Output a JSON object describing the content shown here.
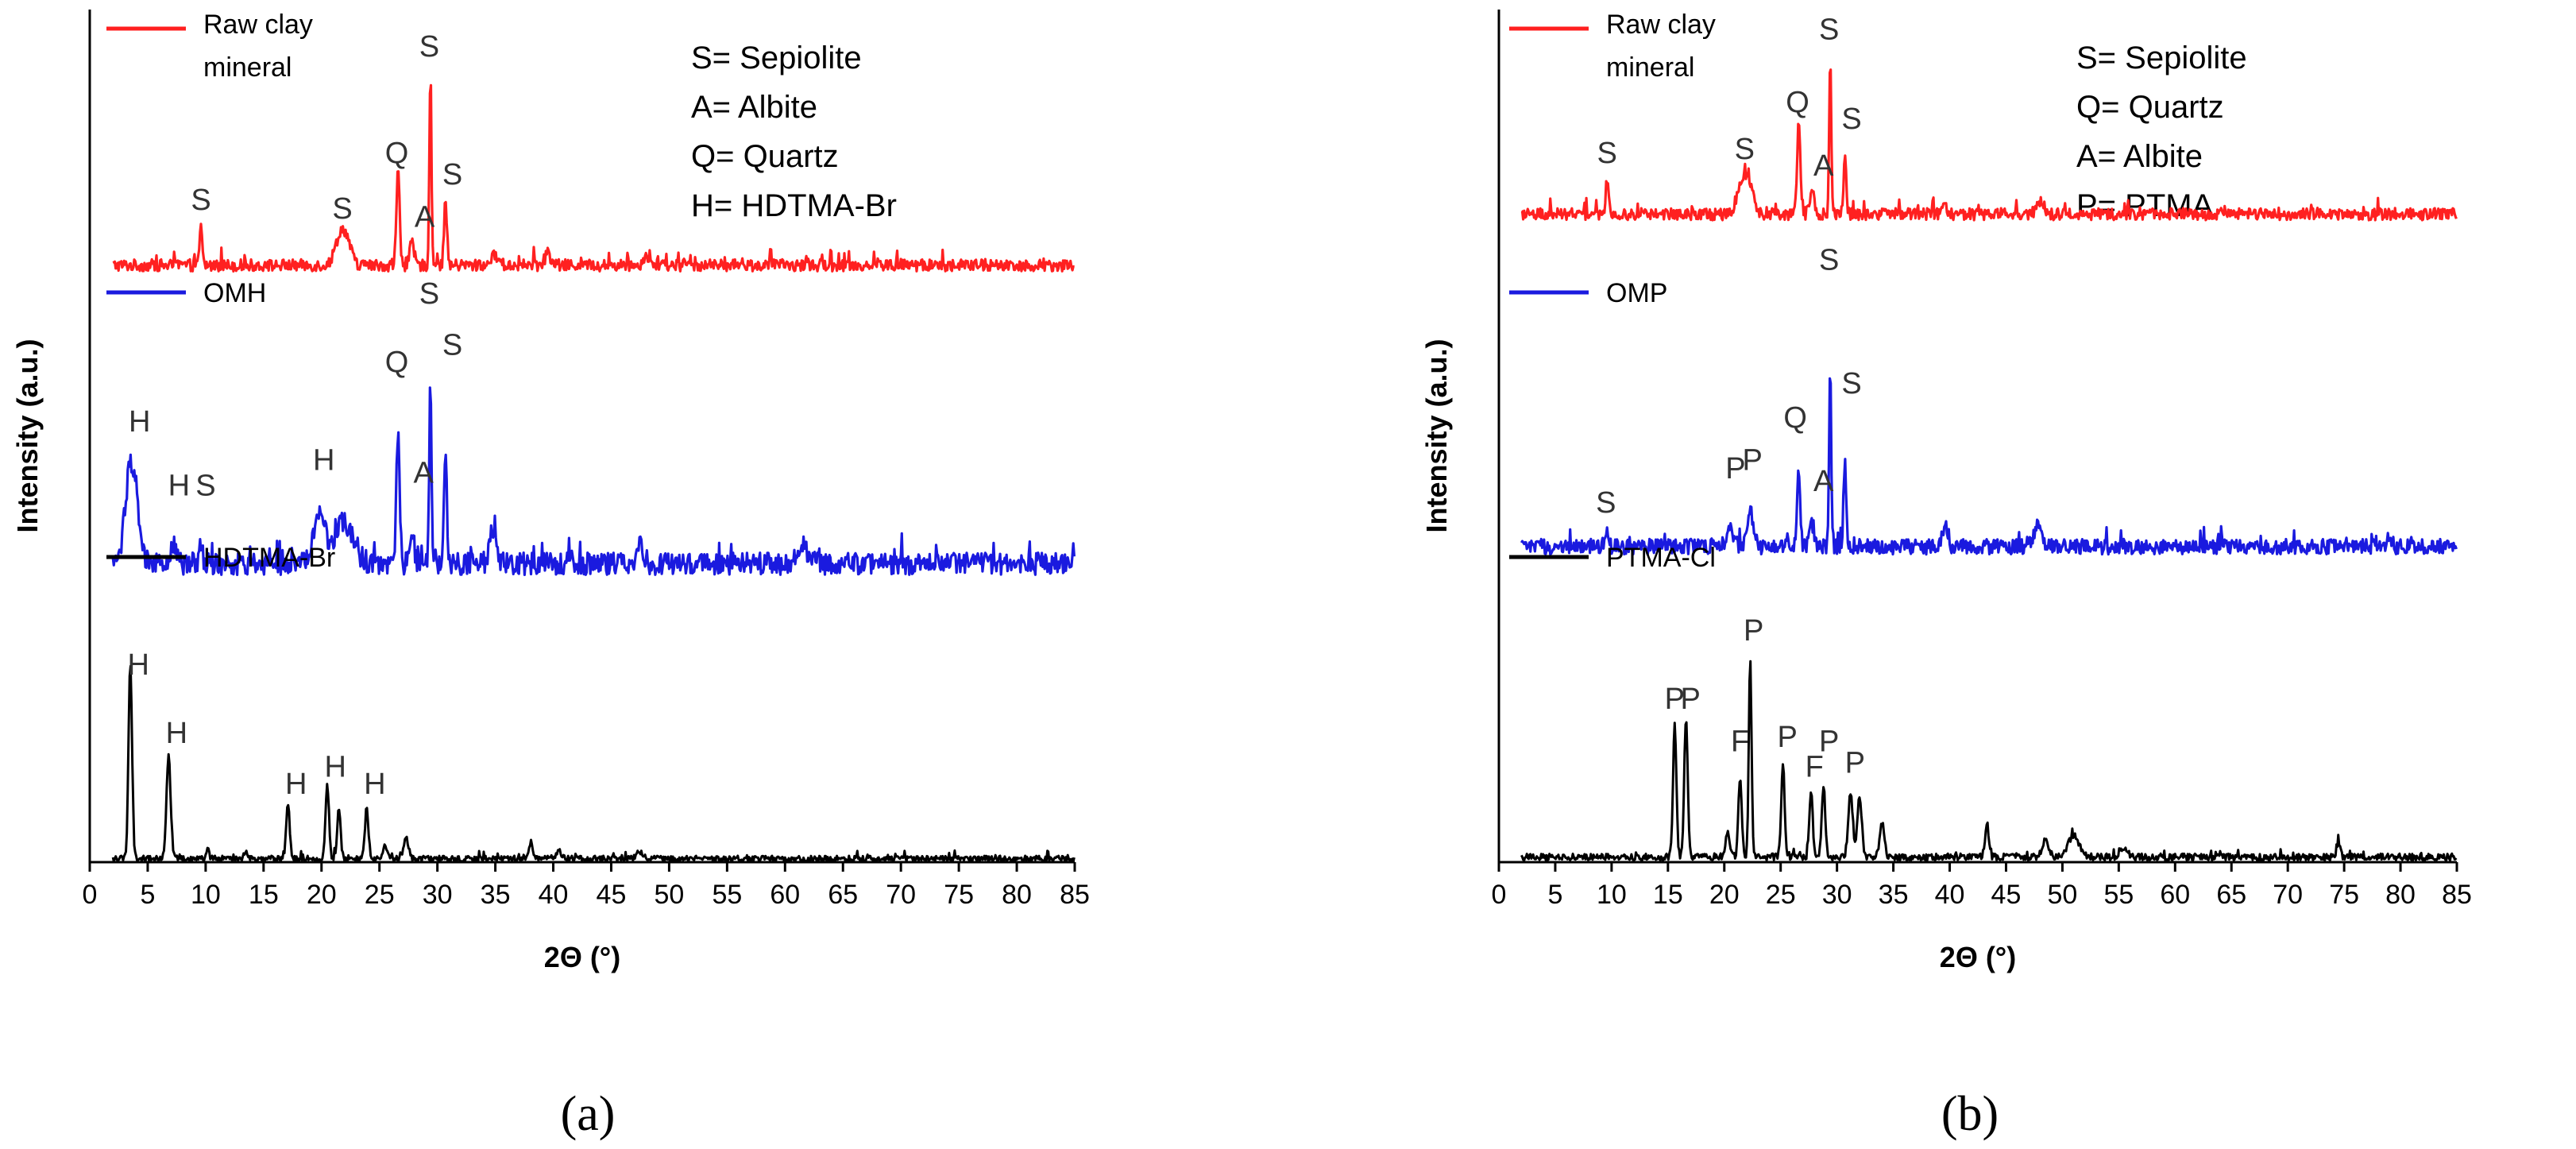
{
  "chart_data": [
    {
      "type": "line",
      "panel_label": "(a)",
      "xlabel": "2Θ (°)",
      "ylabel": "Intensity (a.u.)",
      "xlim": [
        0,
        85
      ],
      "ylim": [
        0,
        100
      ],
      "xticks": [
        "0",
        "5",
        "10",
        "15",
        "20",
        "25",
        "30",
        "35",
        "40",
        "45",
        "50",
        "55",
        "60",
        "65",
        "70",
        "75",
        "80",
        "85"
      ],
      "key": [
        "S= Sepiolite",
        "A= Albite",
        "Q= Quartz",
        "H= HDTMA-Br"
      ],
      "series": [
        {
          "name": "Raw clay mineral",
          "legend_lines": [
            "Raw clay",
            "mineral"
          ],
          "color": "#ff2020",
          "baseline": 70,
          "noise": 0.7,
          "peaks": [
            [
              9.6,
              4.5,
              0.12
            ],
            [
              21.6,
              3.2,
              0.45
            ],
            [
              22.2,
              2.2,
              0.4
            ],
            [
              26.6,
              11.0,
              0.14
            ],
            [
              27.8,
              2.5,
              0.2
            ],
            [
              29.4,
              23.0,
              0.09
            ],
            [
              30.7,
              8.0,
              0.12
            ],
            [
              35.0,
              1.2,
              0.3
            ],
            [
              39.5,
              1.5,
              0.2
            ],
            [
              48.0,
              1.2,
              0.25
            ]
          ],
          "annotations": [
            {
              "text": "S",
              "x": 9.6,
              "y": 76.5
            },
            {
              "text": "S",
              "x": 21.8,
              "y": 75.5
            },
            {
              "text": "Q",
              "x": 26.5,
              "y": 82.0
            },
            {
              "text": "A",
              "x": 28.9,
              "y": 74.5
            },
            {
              "text": "S",
              "x": 29.3,
              "y": 94.5
            },
            {
              "text": "S",
              "x": 31.3,
              "y": 79.5
            }
          ]
        },
        {
          "name": "OMH",
          "legend_lines": [
            "OMH"
          ],
          "color": "#1a1adf",
          "baseline": 35,
          "noise": 1.3,
          "peaks": [
            [
              3.6,
              12.0,
              0.5
            ],
            [
              7.2,
              2.0,
              0.3
            ],
            [
              9.6,
              2.5,
              0.15
            ],
            [
              19.8,
              5.5,
              0.5
            ],
            [
              21.9,
              5.0,
              0.8
            ],
            [
              26.6,
              15.0,
              0.15
            ],
            [
              27.8,
              3.0,
              0.2
            ],
            [
              29.4,
              21.0,
              0.1
            ],
            [
              30.7,
              13.0,
              0.12
            ],
            [
              34.8,
              4.0,
              0.3
            ],
            [
              47.5,
              3.0,
              0.2
            ],
            [
              61.5,
              2.0,
              0.5
            ]
          ],
          "annotations": [
            {
              "text": "H",
              "x": 4.3,
              "y": 50.5
            },
            {
              "text": "H",
              "x": 7.7,
              "y": 43.0
            },
            {
              "text": "S",
              "x": 10.0,
              "y": 43.0
            },
            {
              "text": "H",
              "x": 20.2,
              "y": 46.0
            },
            {
              "text": "Q",
              "x": 26.5,
              "y": 57.5
            },
            {
              "text": "A",
              "x": 28.8,
              "y": 44.5
            },
            {
              "text": "S",
              "x": 29.3,
              "y": 65.5
            },
            {
              "text": "S",
              "x": 31.3,
              "y": 59.5
            }
          ]
        },
        {
          "name": "HDTMA-Br",
          "legend_lines": [
            "HDTMA-Br"
          ],
          "color": "#000000",
          "baseline": 0.4,
          "noise": 0.35,
          "peaks": [
            [
              3.5,
              23.0,
              0.15
            ],
            [
              6.8,
              12.0,
              0.18
            ],
            [
              10.2,
              1.5,
              0.1
            ],
            [
              13.5,
              1.0,
              0.1
            ],
            [
              17.1,
              6.5,
              0.15
            ],
            [
              20.5,
              8.5,
              0.15
            ],
            [
              21.5,
              5.8,
              0.15
            ],
            [
              23.9,
              6.0,
              0.15
            ],
            [
              25.5,
              1.5,
              0.15
            ],
            [
              27.3,
              2.5,
              0.2
            ],
            [
              38.1,
              2.0,
              0.15
            ],
            [
              40.5,
              0.9,
              0.2
            ],
            [
              47.5,
              0.8,
              0.3
            ]
          ],
          "annotations": [
            {
              "text": "H",
              "x": 4.2,
              "y": 22.0
            },
            {
              "text": "H",
              "x": 7.5,
              "y": 14.0
            },
            {
              "text": "H",
              "x": 17.8,
              "y": 8.0
            },
            {
              "text": "H",
              "x": 21.2,
              "y": 10.0
            },
            {
              "text": "H",
              "x": 24.6,
              "y": 8.0
            }
          ]
        }
      ]
    },
    {
      "type": "line",
      "panel_label": "(b)",
      "xlabel": "2Θ (°)",
      "ylabel": "Intensity (a.u.)",
      "xlim": [
        0,
        85
      ],
      "ylim": [
        0,
        100
      ],
      "xticks": [
        "0",
        "5",
        "10",
        "15",
        "20",
        "25",
        "30",
        "35",
        "40",
        "45",
        "50",
        "55",
        "60",
        "65",
        "70",
        "75",
        "80",
        "85"
      ],
      "key": [
        "S= Sepiolite",
        "Q= Quartz",
        "A= Albite",
        "P= PTMA"
      ],
      "series": [
        {
          "name": "Raw clay mineral",
          "legend_lines": [
            "Raw clay",
            "mineral"
          ],
          "color": "#ff2020",
          "baseline": 76,
          "noise": 0.7,
          "peaks": [
            [
              9.6,
              4.0,
              0.12
            ],
            [
              21.6,
              4.0,
              0.45
            ],
            [
              22.3,
              2.5,
              0.4
            ],
            [
              26.6,
              10.5,
              0.14
            ],
            [
              27.8,
              2.5,
              0.2
            ],
            [
              29.4,
              19.0,
              0.09
            ],
            [
              30.7,
              6.5,
              0.12
            ],
            [
              39.5,
              1.5,
              0.2
            ],
            [
              48.0,
              1.5,
              0.3
            ]
          ],
          "annotations": [
            {
              "text": "S",
              "x": 9.6,
              "y": 82.0
            },
            {
              "text": "S",
              "x": 21.8,
              "y": 82.5
            },
            {
              "text": "Q",
              "x": 26.5,
              "y": 88.0
            },
            {
              "text": "A",
              "x": 28.8,
              "y": 80.5
            },
            {
              "text": "S",
              "x": 29.3,
              "y": 96.5
            },
            {
              "text": "S",
              "x": 31.3,
              "y": 86.0
            }
          ]
        },
        {
          "name": "OMP",
          "legend_lines": [
            "OMP"
          ],
          "color": "#1a1adf",
          "baseline": 37,
          "noise": 0.9,
          "peaks": [
            [
              9.6,
              1.5,
              0.12
            ],
            [
              20.5,
              2.5,
              0.3
            ],
            [
              22.3,
              4.0,
              0.3
            ],
            [
              26.6,
              9.0,
              0.14
            ],
            [
              27.8,
              2.5,
              0.2
            ],
            [
              29.4,
              22.0,
              0.09
            ],
            [
              30.7,
              10.0,
              0.12
            ],
            [
              39.5,
              2.0,
              0.25
            ],
            [
              47.8,
              2.5,
              0.3
            ]
          ],
          "annotations": [
            {
              "text": "S",
              "x": 9.5,
              "y": 41.0
            },
            {
              "text": "P",
              "x": 21.0,
              "y": 45.0
            },
            {
              "text": "P",
              "x": 22.5,
              "y": 46.0
            },
            {
              "text": "Q",
              "x": 26.3,
              "y": 51.0
            },
            {
              "text": "A",
              "x": 28.8,
              "y": 43.5
            },
            {
              "text": "S",
              "x": 29.3,
              "y": 69.5
            },
            {
              "text": "S",
              "x": 31.3,
              "y": 55.0
            }
          ]
        },
        {
          "name": "PTMA-Cl",
          "legend_lines": [
            "PTMA-Cl"
          ],
          "color": "#000000",
          "baseline": 0.6,
          "noise": 0.4,
          "peaks": [
            [
              15.6,
              15.5,
              0.15
            ],
            [
              16.6,
              16.5,
              0.15
            ],
            [
              20.3,
              3.0,
              0.2
            ],
            [
              21.4,
              9.0,
              0.15
            ],
            [
              22.3,
              23.0,
              0.12
            ],
            [
              25.2,
              11.0,
              0.15
            ],
            [
              27.7,
              7.5,
              0.15
            ],
            [
              28.8,
              8.5,
              0.15
            ],
            [
              31.2,
              7.5,
              0.2
            ],
            [
              32.0,
              7.0,
              0.2
            ],
            [
              34.0,
              4.0,
              0.2
            ],
            [
              43.3,
              4.0,
              0.15
            ],
            [
              48.5,
              2.0,
              0.3
            ],
            [
              51.0,
              2.5,
              0.5
            ],
            [
              55.5,
              1.2,
              0.3
            ],
            [
              74.5,
              1.5,
              0.15
            ]
          ],
          "annotations": [
            {
              "text": "P",
              "x": 15.6,
              "y": 18.0
            },
            {
              "text": "P",
              "x": 17.0,
              "y": 18.0
            },
            {
              "text": "P",
              "x": 22.6,
              "y": 26.0
            },
            {
              "text": "F",
              "x": 21.4,
              "y": 13.0
            },
            {
              "text": "P",
              "x": 25.6,
              "y": 13.5
            },
            {
              "text": "F",
              "x": 28.0,
              "y": 10.0
            },
            {
              "text": "P",
              "x": 29.3,
              "y": 13.0
            },
            {
              "text": "P",
              "x": 31.6,
              "y": 10.5
            }
          ]
        }
      ]
    }
  ]
}
